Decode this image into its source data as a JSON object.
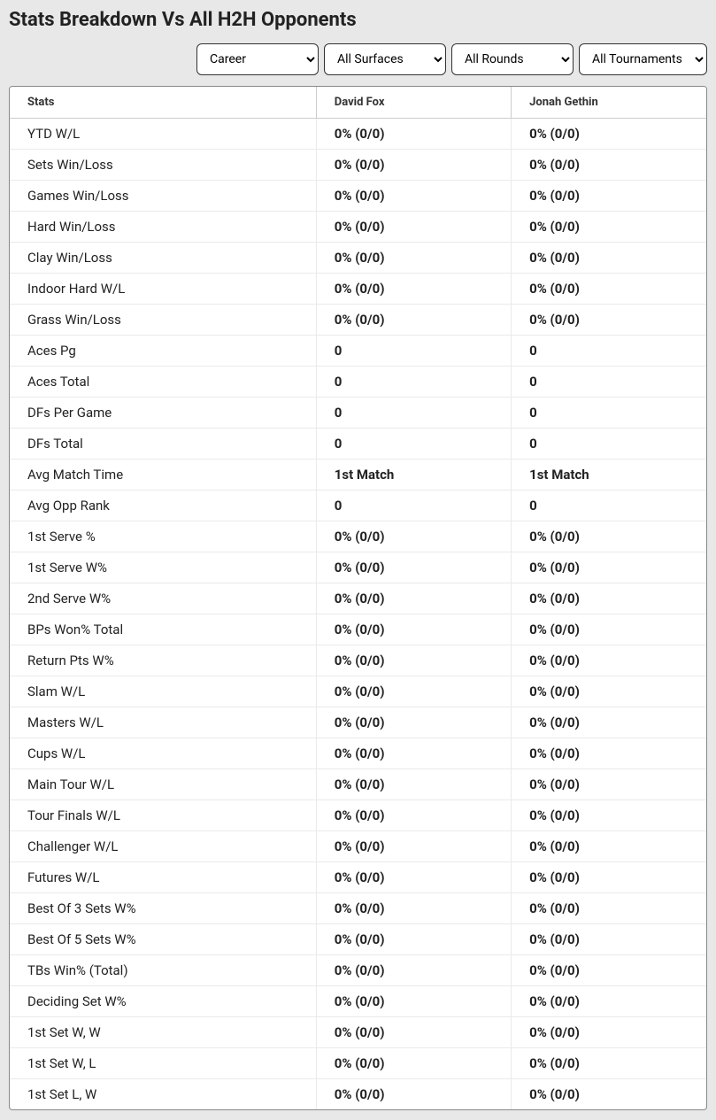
{
  "title": "Stats Breakdown Vs All H2H Opponents",
  "filters": {
    "period": {
      "selected": "Career"
    },
    "surface": {
      "selected": "All Surfaces"
    },
    "round": {
      "selected": "All Rounds"
    },
    "tournament": {
      "selected": "All Tournaments"
    }
  },
  "table": {
    "headers": {
      "stats": "Stats",
      "player1": "David Fox",
      "player2": "Jonah Gethin"
    },
    "rows": [
      {
        "stat": "YTD W/L",
        "p1": "0% (0/0)",
        "p2": "0% (0/0)"
      },
      {
        "stat": "Sets Win/Loss",
        "p1": "0% (0/0)",
        "p2": "0% (0/0)"
      },
      {
        "stat": "Games Win/Loss",
        "p1": "0% (0/0)",
        "p2": "0% (0/0)"
      },
      {
        "stat": "Hard Win/Loss",
        "p1": "0% (0/0)",
        "p2": "0% (0/0)"
      },
      {
        "stat": "Clay Win/Loss",
        "p1": "0% (0/0)",
        "p2": "0% (0/0)"
      },
      {
        "stat": "Indoor Hard W/L",
        "p1": "0% (0/0)",
        "p2": "0% (0/0)"
      },
      {
        "stat": "Grass Win/Loss",
        "p1": "0% (0/0)",
        "p2": "0% (0/0)"
      },
      {
        "stat": "Aces Pg",
        "p1": "0",
        "p2": "0"
      },
      {
        "stat": "Aces Total",
        "p1": "0",
        "p2": "0"
      },
      {
        "stat": "DFs Per Game",
        "p1": "0",
        "p2": "0"
      },
      {
        "stat": "DFs Total",
        "p1": "0",
        "p2": "0"
      },
      {
        "stat": "Avg Match Time",
        "p1": "1st Match",
        "p2": "1st Match"
      },
      {
        "stat": "Avg Opp Rank",
        "p1": "0",
        "p2": "0"
      },
      {
        "stat": "1st Serve %",
        "p1": "0% (0/0)",
        "p2": "0% (0/0)"
      },
      {
        "stat": "1st Serve W%",
        "p1": "0% (0/0)",
        "p2": "0% (0/0)"
      },
      {
        "stat": "2nd Serve W%",
        "p1": "0% (0/0)",
        "p2": "0% (0/0)"
      },
      {
        "stat": "BPs Won% Total",
        "p1": "0% (0/0)",
        "p2": "0% (0/0)"
      },
      {
        "stat": "Return Pts W%",
        "p1": "0% (0/0)",
        "p2": "0% (0/0)"
      },
      {
        "stat": "Slam W/L",
        "p1": "0% (0/0)",
        "p2": "0% (0/0)"
      },
      {
        "stat": "Masters W/L",
        "p1": "0% (0/0)",
        "p2": "0% (0/0)"
      },
      {
        "stat": "Cups W/L",
        "p1": "0% (0/0)",
        "p2": "0% (0/0)"
      },
      {
        "stat": "Main Tour W/L",
        "p1": "0% (0/0)",
        "p2": "0% (0/0)"
      },
      {
        "stat": "Tour Finals W/L",
        "p1": "0% (0/0)",
        "p2": "0% (0/0)"
      },
      {
        "stat": "Challenger W/L",
        "p1": "0% (0/0)",
        "p2": "0% (0/0)"
      },
      {
        "stat": "Futures W/L",
        "p1": "0% (0/0)",
        "p2": "0% (0/0)"
      },
      {
        "stat": "Best Of 3 Sets W%",
        "p1": "0% (0/0)",
        "p2": "0% (0/0)"
      },
      {
        "stat": "Best Of 5 Sets W%",
        "p1": "0% (0/0)",
        "p2": "0% (0/0)"
      },
      {
        "stat": "TBs Win% (Total)",
        "p1": "0% (0/0)",
        "p2": "0% (0/0)"
      },
      {
        "stat": "Deciding Set W%",
        "p1": "0% (0/0)",
        "p2": "0% (0/0)"
      },
      {
        "stat": "1st Set W, W",
        "p1": "0% (0/0)",
        "p2": "0% (0/0)"
      },
      {
        "stat": "1st Set W, L",
        "p1": "0% (0/0)",
        "p2": "0% (0/0)"
      },
      {
        "stat": "1st Set L, W",
        "p1": "0% (0/0)",
        "p2": "0% (0/0)"
      }
    ]
  }
}
